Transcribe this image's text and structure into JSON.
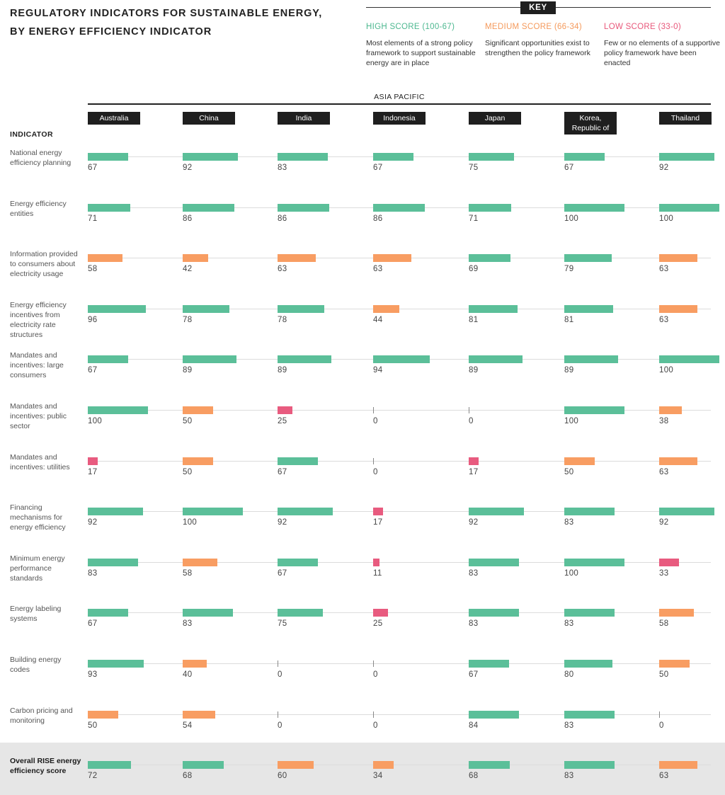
{
  "title": {
    "line1": "REGULATORY INDICATORS FOR SUSTAINABLE ENERGY,",
    "line2": "BY ENERGY EFFICIENCY INDICATOR"
  },
  "key": {
    "label": "KEY",
    "items": [
      {
        "title": "HIGH SCORE (100-67)",
        "desc": "Most elements of a strong policy framework to support sustainable energy are in place",
        "color": "#4db890"
      },
      {
        "title": "MEDIUM SCORE (66-34)",
        "desc": "Significant opportunities exist to strengthen the policy framework",
        "color": "#f59a5c"
      },
      {
        "title": "LOW SCORE (33-0)",
        "desc": "Few or no elements of a supportive policy framework have been enacted",
        "color": "#e8577a"
      }
    ]
  },
  "region": "ASIA PACIFIC",
  "indicator_header": "INDICATOR",
  "countries": [
    "Australia",
    "China",
    "India",
    "Indonesia",
    "Japan",
    "Korea, Republic of",
    "Thailand"
  ],
  "colors": {
    "high": "#5bbf99",
    "medium": "#f89d62",
    "low": "#e85b7f"
  },
  "chart_data": {
    "type": "bar",
    "title": "REGULATORY INDICATORS FOR SUSTAINABLE ENERGY, BY ENERGY EFFICIENCY INDICATOR",
    "xlim": [
      0,
      100
    ],
    "categories": [
      "Australia",
      "China",
      "India",
      "Indonesia",
      "Japan",
      "Korea, Republic of",
      "Thailand"
    ],
    "rows": [
      {
        "label": "National energy efficiency planning",
        "values": [
          67,
          92,
          83,
          67,
          75,
          67,
          92
        ]
      },
      {
        "label": "Energy efficiency entities",
        "values": [
          71,
          86,
          86,
          86,
          71,
          100,
          100
        ]
      },
      {
        "label": "Information provided to consumers about electricity usage",
        "values": [
          58,
          42,
          63,
          63,
          69,
          79,
          63
        ]
      },
      {
        "label": "Energy efficiency incentives from electricity rate structures",
        "values": [
          96,
          78,
          78,
          44,
          81,
          81,
          63
        ]
      },
      {
        "label": "Mandates and incentives: large consumers",
        "values": [
          67,
          89,
          89,
          94,
          89,
          89,
          100
        ]
      },
      {
        "label": "Mandates and incentives: public sector",
        "values": [
          100,
          50,
          25,
          0,
          0,
          100,
          38
        ]
      },
      {
        "label": "Mandates and incentives: utilities",
        "values": [
          17,
          50,
          67,
          0,
          17,
          50,
          63
        ]
      },
      {
        "label": "Financing mechanisms for energy efficiency",
        "values": [
          92,
          100,
          92,
          17,
          92,
          83,
          92
        ]
      },
      {
        "label": "Minimum energy performance standards",
        "values": [
          83,
          58,
          67,
          11,
          83,
          100,
          33
        ]
      },
      {
        "label": "Energy labeling systems",
        "values": [
          67,
          83,
          75,
          25,
          83,
          83,
          58
        ]
      },
      {
        "label": "Building energy codes",
        "values": [
          93,
          40,
          0,
          0,
          67,
          80,
          50
        ]
      },
      {
        "label": "Carbon pricing and monitoring",
        "values": [
          50,
          54,
          0,
          0,
          84,
          83,
          0
        ]
      },
      {
        "label": "Overall RISE energy efficiency score",
        "values": [
          72,
          68,
          60,
          34,
          68,
          83,
          63
        ],
        "highlight": true
      }
    ]
  }
}
